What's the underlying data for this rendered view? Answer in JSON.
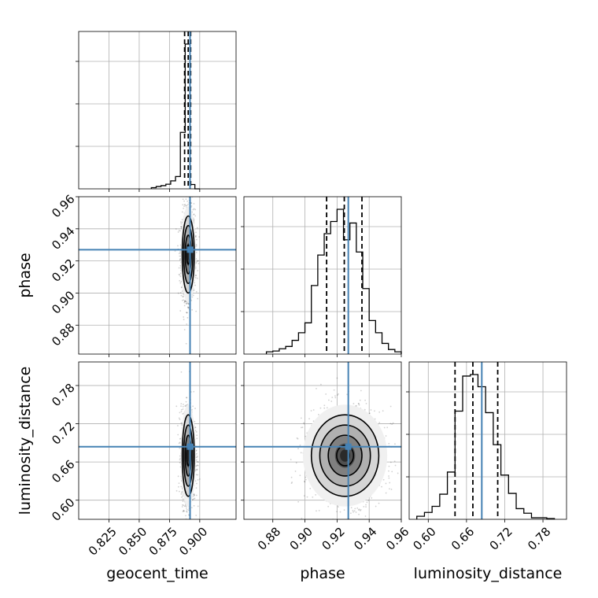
{
  "chart_data": {
    "type": "corner",
    "parameters": [
      "geocent_time",
      "phase",
      "luminosity_distance"
    ],
    "truth_values": {
      "geocent_time": 0.892,
      "phase": 0.927,
      "luminosity_distance": 0.684
    },
    "ranges": {
      "geocent_time": [
        0.8,
        0.93
      ],
      "phase": [
        0.862,
        0.96
      ],
      "luminosity_distance": [
        0.57,
        0.817
      ]
    },
    "ticks": {
      "geocent_time": {
        "values": [
          0.825,
          0.85,
          0.875,
          0.9
        ],
        "labels": [
          "0.825",
          "0.850",
          "0.875",
          "0.900"
        ]
      },
      "phase": {
        "values": [
          0.88,
          0.9,
          0.92,
          0.94,
          0.96
        ],
        "labels": [
          "0.88",
          "0.90",
          "0.92",
          "0.94",
          "0.96"
        ]
      },
      "luminosity_distance": {
        "values": [
          0.6,
          0.66,
          0.72,
          0.78
        ],
        "labels": [
          "0.60",
          "0.66",
          "0.72",
          "0.78"
        ]
      }
    },
    "quantiles": {
      "geocent_time": [
        0.8875,
        0.8905,
        0.8925
      ],
      "phase": [
        0.9135,
        0.9245,
        0.9355
      ],
      "luminosity_distance": [
        0.642,
        0.67,
        0.709
      ]
    },
    "histograms": {
      "geocent_time": {
        "edges": [
          0.86,
          0.864,
          0.868,
          0.872,
          0.876,
          0.88,
          0.884,
          0.888,
          0.892,
          0.896,
          0.9
        ],
        "counts": [
          0.008,
          0.016,
          0.022,
          0.032,
          0.055,
          0.085,
          0.39,
          1.0,
          0.03,
          0.0
        ]
      },
      "phase": {
        "edges": [
          0.876,
          0.88,
          0.884,
          0.888,
          0.892,
          0.896,
          0.9,
          0.904,
          0.908,
          0.912,
          0.916,
          0.92,
          0.924,
          0.928,
          0.932,
          0.936,
          0.94,
          0.944,
          0.948,
          0.952,
          0.956,
          0.96
        ],
        "counts": [
          0.015,
          0.02,
          0.035,
          0.05,
          0.09,
          0.14,
          0.205,
          0.45,
          0.65,
          0.79,
          0.87,
          0.95,
          0.75,
          0.86,
          0.67,
          0.43,
          0.22,
          0.14,
          0.07,
          0.03,
          0.015
        ]
      },
      "luminosity_distance": {
        "edges": [
          0.582,
          0.594,
          0.606,
          0.618,
          0.63,
          0.642,
          0.654,
          0.666,
          0.678,
          0.69,
          0.702,
          0.714,
          0.726,
          0.738,
          0.75,
          0.762,
          0.774,
          0.786,
          0.798
        ],
        "counts": [
          0.02,
          0.045,
          0.085,
          0.165,
          0.31,
          0.71,
          0.94,
          0.95,
          0.87,
          0.7,
          0.49,
          0.29,
          0.17,
          0.07,
          0.04,
          0.01,
          0.01,
          0.005
        ]
      }
    },
    "contours_2d": {
      "phase_vs_geocent_time": {
        "center": [
          0.8905,
          0.924
        ],
        "sigma": [
          0.0025,
          0.012
        ]
      },
      "luminosity_distance_vs_geocent_time": {
        "center": [
          0.8905,
          0.67
        ],
        "sigma": [
          0.0025,
          0.032
        ]
      },
      "luminosity_distance_vs_phase": {
        "center": [
          0.925,
          0.67
        ],
        "sigma": [
          0.0105,
          0.032
        ]
      }
    },
    "colors": {
      "truth": "#4682b4",
      "histogram": "#000000",
      "quantile": "#000000",
      "grid": "#b0b0b0"
    },
    "grid": true,
    "xlabel": [
      "geocent_time",
      "phase",
      "luminosity_distance"
    ],
    "ylabel": [
      "phase",
      "luminosity_distance"
    ]
  }
}
